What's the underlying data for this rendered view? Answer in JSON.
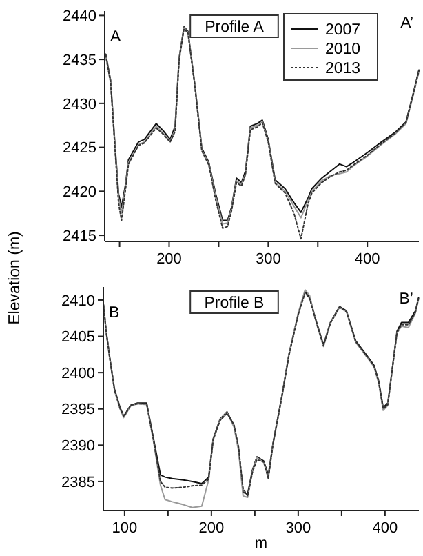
{
  "chart_data": [
    {
      "type": "line",
      "title": "Profile A",
      "ylabel": "Elevation (m)",
      "legend": "top right",
      "grid": false,
      "xlim": [
        135,
        452
      ],
      "ylim": [
        2414.3,
        2440.5
      ],
      "xticks": [
        {
          "value": 150,
          "label": null
        },
        200,
        {
          "value": 250,
          "label": null
        },
        300,
        {
          "value": 350,
          "label": null
        },
        400
      ],
      "yticks": [
        2415,
        2420,
        2425,
        2430,
        2435,
        2440
      ],
      "annotations": [
        "A",
        "A’"
      ],
      "x": [
        136,
        141,
        145,
        149,
        152,
        156,
        159,
        169,
        175,
        187,
        194,
        201,
        206,
        210,
        215,
        219,
        226,
        233,
        240,
        247,
        254,
        259,
        263,
        268,
        273,
        277,
        282,
        289,
        294,
        300,
        307,
        317,
        326,
        333,
        340,
        344,
        354,
        363,
        372,
        379,
        386,
        400,
        414,
        428,
        439,
        446,
        452
      ],
      "series": [
        {
          "name": "2007",
          "color": "#111111",
          "line_style": "solid",
          "values": [
            2435.6,
            2432.6,
            2425.9,
            2419.7,
            2418.2,
            2420.8,
            2423.6,
            2425.6,
            2425.9,
            2427.7,
            2426.9,
            2425.9,
            2427.4,
            2435.1,
            2438.7,
            2438.2,
            2432.1,
            2424.9,
            2423.3,
            2419.7,
            2416.7,
            2416.7,
            2418.2,
            2421.5,
            2421.0,
            2422.3,
            2427.4,
            2427.7,
            2428.1,
            2425.9,
            2421.3,
            2420.3,
            2418.7,
            2417.6,
            2419.2,
            2420.3,
            2421.5,
            2422.3,
            2423.1,
            2422.8,
            2423.3,
            2424.4,
            2425.6,
            2426.7,
            2427.9,
            2431.0,
            2433.8
          ]
        },
        {
          "name": "2010",
          "color": "#9a9a9a",
          "line_style": "solid",
          "values": [
            2435.4,
            2432.4,
            2425.6,
            2419.2,
            2417.5,
            2420.5,
            2423.3,
            2425.3,
            2425.6,
            2427.4,
            2426.6,
            2425.7,
            2427.0,
            2434.9,
            2438.6,
            2438.1,
            2432.0,
            2424.7,
            2423.1,
            2419.4,
            2416.3,
            2416.4,
            2418.0,
            2421.2,
            2420.8,
            2422.0,
            2427.2,
            2427.5,
            2427.9,
            2425.7,
            2421.0,
            2420.0,
            2418.3,
            2417.0,
            2418.9,
            2420.0,
            2421.2,
            2421.8,
            2422.0,
            2422.2,
            2422.9,
            2424.0,
            2425.3,
            2426.5,
            2427.7,
            2430.8,
            2433.6
          ]
        },
        {
          "name": "2013",
          "color": "#333333",
          "line_style": "dotted",
          "values": [
            2435.5,
            2432.3,
            2425.5,
            2418.6,
            2416.7,
            2420.2,
            2423.1,
            2425.2,
            2425.5,
            2427.2,
            2426.5,
            2425.6,
            2426.8,
            2434.8,
            2438.5,
            2438.0,
            2431.9,
            2424.6,
            2423.0,
            2419.0,
            2415.8,
            2416.0,
            2417.8,
            2421.0,
            2420.6,
            2421.9,
            2427.0,
            2427.3,
            2427.8,
            2425.6,
            2420.9,
            2419.8,
            2417.5,
            2414.6,
            2418.5,
            2419.8,
            2421.0,
            2421.7,
            2422.2,
            2422.4,
            2423.0,
            2424.1,
            2425.4,
            2426.6,
            2427.8,
            2430.9,
            2433.7
          ]
        }
      ]
    },
    {
      "type": "line",
      "title": "Profile B",
      "xlabel": "m",
      "legend": false,
      "grid": false,
      "xlim": [
        75.5,
        439
      ],
      "ylim": [
        2381,
        2411.8
      ],
      "xticks": [
        100,
        {
          "value": 150,
          "label": null
        },
        200,
        {
          "value": 250,
          "label": null
        },
        300,
        {
          "value": 350,
          "label": null
        },
        400
      ],
      "yticks": [
        2385,
        2390,
        2395,
        2400,
        2405,
        2410
      ],
      "annotations": [
        "B",
        "B’"
      ],
      "x": [
        75.7,
        78.8,
        83,
        88.4,
        94.7,
        99,
        107,
        114.8,
        125.4,
        133.3,
        141.3,
        146.6,
        155,
        167.7,
        178,
        188.9,
        196.8,
        202.1,
        210,
        218,
        226,
        231.2,
        236.5,
        241.8,
        247.1,
        252.4,
        260.3,
        265.6,
        270.9,
        281.5,
        289.4,
        300,
        307.9,
        313.2,
        321.2,
        329.1,
        337,
        347.6,
        355.6,
        366.1,
        379.4,
        387.3,
        392.6,
        397.9,
        403.2,
        408.5,
        413.8,
        419,
        427,
        435,
        438.6
      ],
      "series": [
        {
          "color": "#111111",
          "line_style": "solid",
          "values": [
            2409.4,
            2405.7,
            2402.0,
            2397.7,
            2395.2,
            2394.0,
            2395.5,
            2395.8,
            2395.8,
            2390.9,
            2385.9,
            2385.6,
            2385.4,
            2385.2,
            2385.0,
            2384.7,
            2385.6,
            2390.9,
            2393.6,
            2394.6,
            2392.7,
            2389.6,
            2383.5,
            2383.3,
            2386.5,
            2388.4,
            2387.8,
            2385.9,
            2390.2,
            2397.0,
            2402.6,
            2408.1,
            2411.2,
            2410.3,
            2406.9,
            2403.8,
            2406.9,
            2409.1,
            2408.5,
            2404.4,
            2402.3,
            2401.0,
            2398.9,
            2395.2,
            2395.8,
            2400.7,
            2405.7,
            2406.9,
            2406.9,
            2408.5,
            2410.3
          ]
        },
        {
          "color": "#9a9a9a",
          "line_style": "solid",
          "values": [
            2409.2,
            2405.5,
            2401.8,
            2397.5,
            2395.0,
            2393.8,
            2395.4,
            2395.7,
            2395.6,
            2390.5,
            2384.5,
            2382.5,
            2382.2,
            2381.8,
            2381.4,
            2381.6,
            2385.2,
            2390.7,
            2393.5,
            2394.5,
            2392.5,
            2389.3,
            2383.0,
            2382.8,
            2386.3,
            2388.3,
            2387.6,
            2385.5,
            2390.0,
            2396.8,
            2402.5,
            2408.2,
            2411.4,
            2410.6,
            2406.7,
            2403.6,
            2406.8,
            2409.0,
            2408.4,
            2404.2,
            2402.1,
            2400.8,
            2398.6,
            2394.8,
            2395.5,
            2400.5,
            2405.4,
            2406.4,
            2406.2,
            2408.2,
            2410.1
          ]
        },
        {
          "color": "#333333",
          "line_style": "dotted",
          "values": [
            2409.3,
            2405.6,
            2401.9,
            2397.6,
            2395.1,
            2393.9,
            2395.5,
            2395.7,
            2395.7,
            2390.7,
            2385.0,
            2384.2,
            2384.1,
            2384.2,
            2384.4,
            2384.5,
            2385.3,
            2390.8,
            2393.4,
            2394.4,
            2392.8,
            2389.8,
            2384.0,
            2383.0,
            2386.2,
            2388.0,
            2387.7,
            2385.4,
            2390.1,
            2396.9,
            2402.4,
            2408.0,
            2411.0,
            2410.2,
            2406.8,
            2403.7,
            2406.8,
            2409.0,
            2408.4,
            2404.3,
            2402.2,
            2400.9,
            2398.8,
            2395.0,
            2395.6,
            2400.6,
            2405.5,
            2406.6,
            2406.6,
            2408.3,
            2410.2
          ]
        }
      ]
    }
  ]
}
